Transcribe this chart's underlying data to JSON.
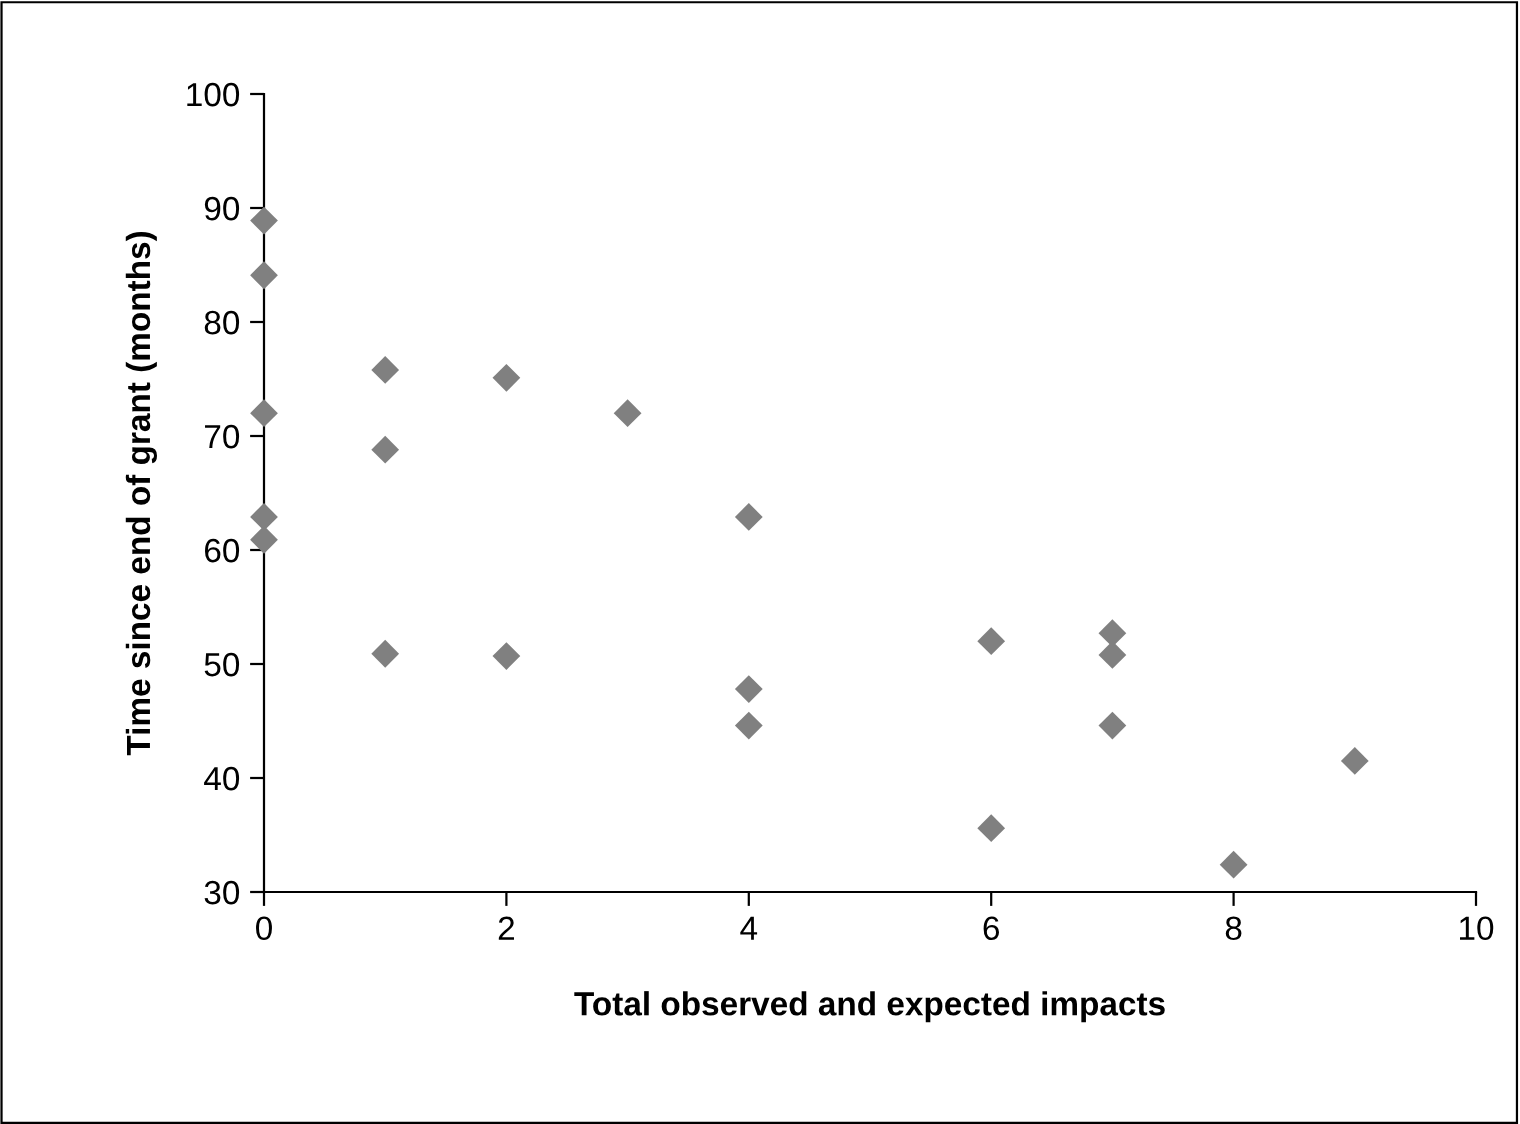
{
  "chart_data": {
    "type": "scatter",
    "xlabel": "Total observed and expected impacts",
    "ylabel": "Time since end of grant (months)",
    "x": [
      0,
      0,
      0,
      0,
      0,
      1,
      1,
      1,
      2,
      2,
      3,
      4,
      4,
      4,
      6,
      6,
      7,
      7,
      7,
      8,
      9
    ],
    "values": [
      88.9,
      84.1,
      72.0,
      62.9,
      60.9,
      75.8,
      68.8,
      50.9,
      75.1,
      50.7,
      72.0,
      62.9,
      47.8,
      44.6,
      52.0,
      35.6,
      52.7,
      50.8,
      44.6,
      32.4,
      41.5
    ],
    "color": "#808080",
    "marker": "diamond",
    "xlim": [
      0,
      10
    ],
    "xticks": [
      0,
      2,
      4,
      6,
      8,
      10
    ],
    "ylim": [
      30,
      100
    ],
    "yticks": [
      30,
      40,
      50,
      60,
      70,
      80,
      90,
      100
    ],
    "grid": false
  }
}
